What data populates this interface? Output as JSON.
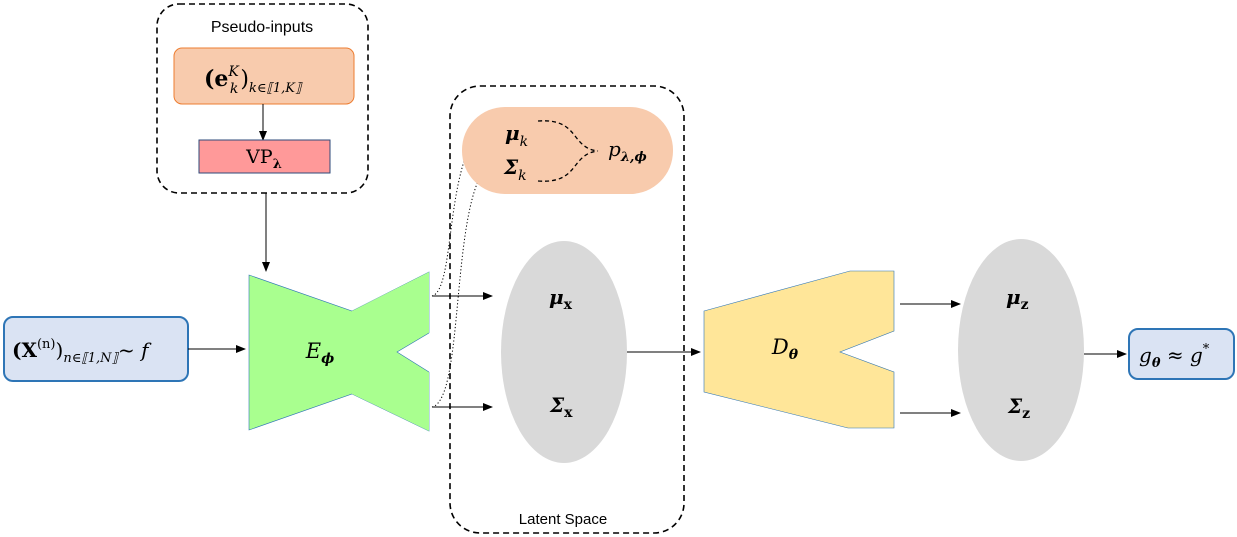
{
  "colors": {
    "peach": "#f8cbad",
    "peach_border": "#ed7d31",
    "pink": "#ff9999",
    "green": "#a9ff8f",
    "yellow": "#ffe699",
    "grey": "#d9d9d9",
    "blue_fill": "#dae3f3",
    "blue_border": "#2e75b6"
  },
  "pseudo_inputs": {
    "title": "Pseudo-inputs",
    "e_base": "(e",
    "e_sup": "K",
    "e_sub": "k",
    "e_close": ")",
    "e_index": "k∈⟦1,K⟧",
    "vp_base": "VP",
    "vp_sub": "λ"
  },
  "input": {
    "x_base": "(X",
    "x_sup": "(n)",
    "x_close": ")",
    "x_index": "n∈⟦1,N⟧",
    "x_tail": "~ f"
  },
  "encoder": {
    "base": "E",
    "sub": "ϕ"
  },
  "latent": {
    "title": "Latent Space",
    "mu_k_base": "μ",
    "mu_k_sub": "k",
    "sigma_k_base": "Σ",
    "sigma_k_sub": "k",
    "p_base": "p",
    "p_sub": "λ,ϕ",
    "mu_x_base": "μ",
    "mu_x_sub": "x",
    "sigma_x_base": "Σ",
    "sigma_x_sub": "x"
  },
  "decoder": {
    "base": "D",
    "sub": "θ"
  },
  "output": {
    "mu_z_base": "μ",
    "mu_z_sub": "z",
    "sigma_z_base": "Σ",
    "sigma_z_sub": "z",
    "g_base": "g",
    "g_sub": "θ",
    "approx": " ≈ g",
    "g_sup": "*"
  }
}
